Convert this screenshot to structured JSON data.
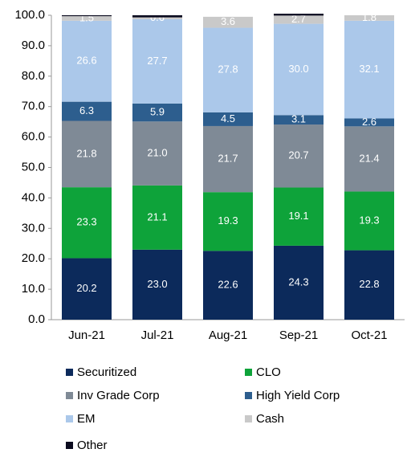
{
  "chart_data": {
    "type": "stacked_bar",
    "categories": [
      "Jun-21",
      "Jul-21",
      "Aug-21",
      "Sep-21",
      "Oct-21"
    ],
    "series": [
      {
        "name": "Securitized",
        "color": "#0c2a5b",
        "values": [
          20.2,
          23.0,
          22.6,
          24.3,
          22.8
        ],
        "value_labels": [
          "20.2",
          "23.0",
          "22.6",
          "24.3",
          "22.8"
        ]
      },
      {
        "name": "CLO",
        "color": "#0ea33a",
        "values": [
          23.3,
          21.1,
          19.3,
          19.1,
          19.3
        ],
        "value_labels": [
          "23.3",
          "21.1",
          "19.3",
          "19.1",
          "19.3"
        ]
      },
      {
        "name": "Inv Grade Corp",
        "color": "#7f8a96",
        "values": [
          21.8,
          21.0,
          21.7,
          20.7,
          21.4
        ],
        "value_labels": [
          "21.8",
          "21.0",
          "21.7",
          "20.7",
          "21.4"
        ]
      },
      {
        "name": "High Yield Corp",
        "color": "#2d5e8e",
        "values": [
          6.3,
          5.9,
          4.5,
          3.1,
          2.6
        ],
        "value_labels": [
          "6.3",
          "5.9",
          "4.5",
          "3.1",
          "2.6"
        ]
      },
      {
        "name": "EM",
        "color": "#abc8ea",
        "values": [
          26.6,
          27.7,
          27.8,
          30.0,
          32.1
        ],
        "value_labels": [
          "26.6",
          "27.7",
          "27.8",
          "30.0",
          "32.1"
        ]
      },
      {
        "name": "Cash",
        "color": "#c9c9c9",
        "values": [
          1.5,
          0.6,
          3.6,
          2.7,
          1.8
        ],
        "value_labels": [
          "1.5",
          "0.6",
          "3.6",
          "2.7",
          "1.8"
        ]
      },
      {
        "name": "Other",
        "color": "#0a0a1e",
        "values": [
          0.3,
          0.7,
          0,
          0.6,
          0
        ]
      }
    ],
    "ylim": [
      0,
      100
    ],
    "yticks": [
      {
        "value": 0,
        "label": "0.0"
      },
      {
        "value": 10,
        "label": "10.0"
      },
      {
        "value": 20,
        "label": "20.0"
      },
      {
        "value": 30,
        "label": "30.0"
      },
      {
        "value": 40,
        "label": "40.0"
      },
      {
        "value": 50,
        "label": "50.0"
      },
      {
        "value": 60,
        "label": "60.0"
      },
      {
        "value": 70,
        "label": "70.0"
      },
      {
        "value": 80,
        "label": "80.0"
      },
      {
        "value": 90,
        "label": "90.0"
      },
      {
        "value": 100,
        "label": "100.0"
      }
    ]
  }
}
